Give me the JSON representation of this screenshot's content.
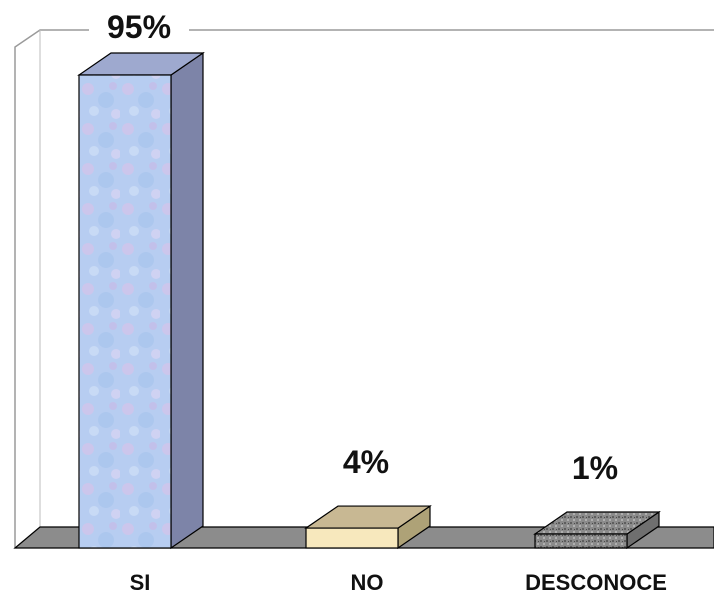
{
  "chart_data": {
    "type": "bar",
    "style": "3d",
    "categories": [
      "SI",
      "NO",
      "DESCONOCE"
    ],
    "values": [
      95,
      4,
      1
    ],
    "value_labels": [
      "95%",
      "4%",
      "1%"
    ],
    "ylim": [
      0,
      100
    ],
    "grid": false,
    "legend": "none"
  },
  "colors": {
    "bar_si_front": "#b9cdf0",
    "bar_si_side": "#7d84a8",
    "bar_si_top": "#9ea9cf",
    "bar_no_front": "#f7e8bd",
    "bar_no_side": "#aea277",
    "bar_no_top": "#c8b893",
    "bar_desc_front": "#8a8a8a",
    "bar_desc_side": "#6f6f6f",
    "bar_desc_top": "#9c9c9c",
    "floor": "#8c8c8c",
    "outline": "#000000"
  }
}
